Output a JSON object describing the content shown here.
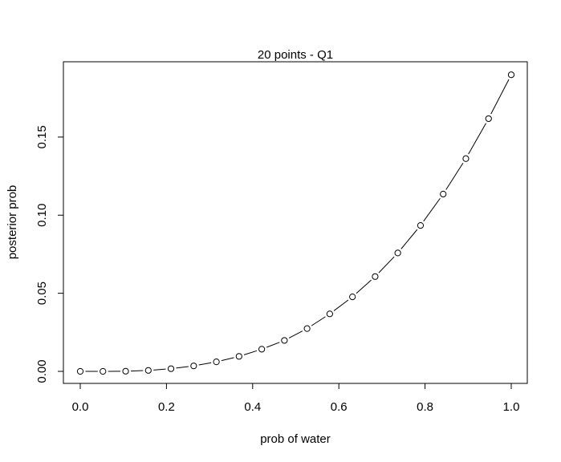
{
  "chart_data": {
    "type": "line",
    "title": "20 points - Q1",
    "xlabel": "prob of water",
    "ylabel": "posterior prob",
    "xlim": [
      0.0,
      1.0
    ],
    "ylim": [
      0.0,
      0.19
    ],
    "x_ticks": [
      0.0,
      0.2,
      0.4,
      0.6,
      0.8,
      1.0
    ],
    "x_tick_labels": [
      "0.0",
      "0.2",
      "0.4",
      "0.6",
      "0.8",
      "1.0"
    ],
    "y_ticks": [
      0.0,
      0.05,
      0.1,
      0.15
    ],
    "y_tick_labels": [
      "0.00",
      "0.05",
      "0.10",
      "0.15"
    ],
    "grid": false,
    "legend": "none",
    "marker": "open-circle",
    "line_style": "solid",
    "series": [
      {
        "x": [
          0.0,
          0.0526,
          0.1053,
          0.1579,
          0.2105,
          0.2632,
          0.3158,
          0.3684,
          0.4211,
          0.4737,
          0.5263,
          0.5789,
          0.6316,
          0.6842,
          0.7368,
          0.7895,
          0.8421,
          0.8947,
          0.9474,
          1.0
        ],
        "y": [
          0.0,
          0.0,
          0.0001,
          0.0006,
          0.0017,
          0.0035,
          0.0061,
          0.0096,
          0.0142,
          0.0198,
          0.0274,
          0.0368,
          0.0477,
          0.0607,
          0.0758,
          0.0934,
          0.1135,
          0.1362,
          0.1618,
          0.1899
        ]
      }
    ]
  }
}
